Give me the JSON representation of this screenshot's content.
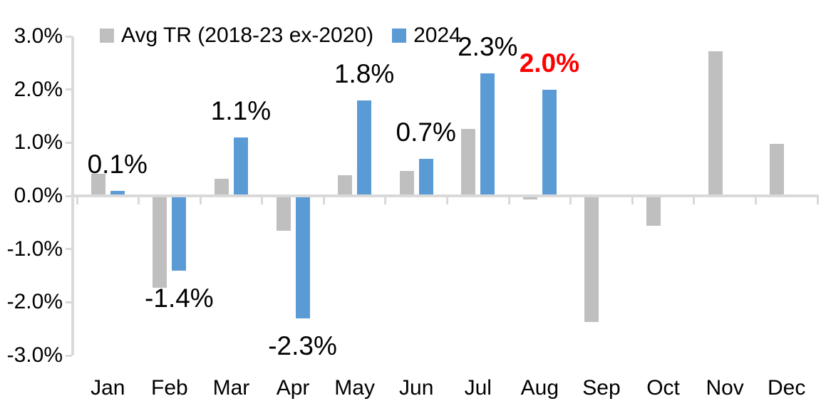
{
  "chart_data": {
    "type": "bar",
    "title": "",
    "categories": [
      "Jan",
      "Feb",
      "Mar",
      "Apr",
      "May",
      "Jun",
      "Jul",
      "Aug",
      "Sep",
      "Oct",
      "Nov",
      "Dec"
    ],
    "y_axis": {
      "min": -3.0,
      "max": 3.0,
      "step": 1.0,
      "tick_labels": [
        "3.0%",
        "2.0%",
        "1.0%",
        "0.0%",
        "-1.0%",
        "-2.0%",
        "-3.0%"
      ]
    },
    "series": [
      {
        "name": "Avg TR (2018-23 ex-2020)",
        "color": "#BFBFBF",
        "values": [
          0.42,
          -1.73,
          0.32,
          -0.65,
          0.39,
          0.47,
          1.26,
          -0.07,
          -2.37,
          -0.56,
          2.72,
          0.98
        ]
      },
      {
        "name": "2024",
        "color": "#5B9BD5",
        "values": [
          0.1,
          -1.4,
          1.1,
          -2.3,
          1.8,
          0.7,
          2.3,
          2.0,
          null,
          null,
          null,
          null
        ],
        "data_labels": [
          {
            "text": "0.1%",
            "color": "#000000",
            "bold": false
          },
          {
            "text": "-1.4%",
            "color": "#000000",
            "bold": false
          },
          {
            "text": "1.1%",
            "color": "#000000",
            "bold": false
          },
          {
            "text": "-2.3%",
            "color": "#000000",
            "bold": false
          },
          {
            "text": "1.8%",
            "color": "#000000",
            "bold": false
          },
          {
            "text": "0.7%",
            "color": "#000000",
            "bold": false
          },
          {
            "text": "2.3%",
            "color": "#000000",
            "bold": false
          },
          {
            "text": "2.0%",
            "color": "#FF0000",
            "bold": true
          },
          null,
          null,
          null,
          null
        ]
      }
    ],
    "legend_position": "top",
    "grid": false,
    "axis_color": "#D9D9D9",
    "text_color": "#000000",
    "highlight_color": "#FF0000",
    "background": "#FFFFFF"
  }
}
